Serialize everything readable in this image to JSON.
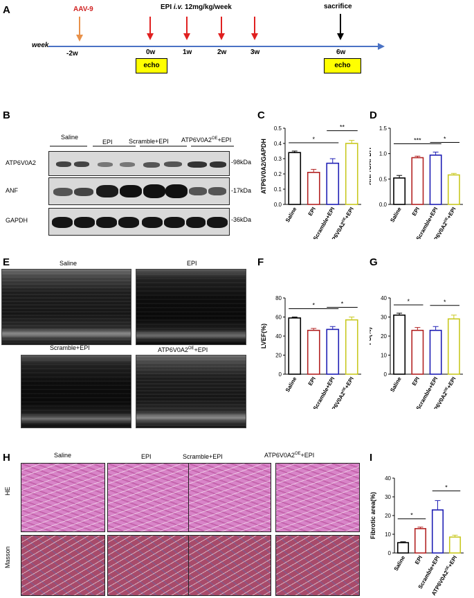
{
  "panels": {
    "A": "A",
    "B": "B",
    "C": "C",
    "D": "D",
    "E": "E",
    "F": "F",
    "G": "G",
    "H": "H",
    "I": "I"
  },
  "timeline": {
    "aav": "AAV-9",
    "epi_prefix": "EPI ",
    "epi_iv": "i.v.",
    "epi_suffix": " 12mg/kg/week",
    "sacrifice": "sacrifice",
    "week": "week",
    "ticks": [
      "-2w",
      "0w",
      "1w",
      "2w",
      "3w",
      "6w"
    ],
    "echo1": "echo",
    "echo2": "echo",
    "colors": {
      "axis": "#4a72c4",
      "aav_arrow": "#e8914a",
      "epi_arrow": "#e02020",
      "sac_arrow": "#000000",
      "aav_text": "#d02020",
      "echo_fill": "#ffff00"
    }
  },
  "blot": {
    "groups": [
      "Saline",
      "EPI",
      "Scramble+EPI"
    ],
    "group4_base": "ATP6V0A2",
    "group4_sup": "OE",
    "group4_tail": "+EPI",
    "rows": [
      {
        "label": "ATP6V0A2",
        "mw": "-98kDa"
      },
      {
        "label": "ANF",
        "mw": "-17kDa"
      },
      {
        "label": "GAPDH",
        "mw": "-36kDa"
      }
    ]
  },
  "echo_panel": {
    "labels": [
      "Saline",
      "EPI",
      "Scramble+EPI"
    ],
    "label4_base": "ATP6V0A2",
    "label4_sup": "OE",
    "label4_tail": "+EPI"
  },
  "histology": {
    "labels": [
      "Saline",
      "EPI",
      "Scramble+EPI"
    ],
    "label4_base": "ATP6V0A2",
    "label4_sup": "OE",
    "label4_tail": "+EPI",
    "rows": [
      "HE",
      "Masson"
    ]
  },
  "chart_data": [
    {
      "panel": "C",
      "type": "bar",
      "categories": [
        "Saline",
        "EPI",
        "Scramble+EPI",
        "ATP6V0A2OE+EPI"
      ],
      "values": [
        0.34,
        0.21,
        0.27,
        0.4
      ],
      "errors": [
        0.01,
        0.02,
        0.03,
        0.02
      ],
      "ylabel": "ATP6V0A2/GAPDH",
      "ylim": [
        0,
        0.5
      ],
      "ticks": [
        0.0,
        0.1,
        0.2,
        0.3,
        0.4,
        0.5
      ],
      "tick_labels": [
        "0.0",
        "0.1",
        "0.2",
        "0.3",
        "0.4",
        "0.5"
      ],
      "significance": [
        {
          "from": 0,
          "to": 2,
          "label": "*"
        },
        {
          "from": 2,
          "to": 3,
          "label": "**"
        }
      ]
    },
    {
      "panel": "D",
      "type": "bar",
      "categories": [
        "Saline",
        "EPI",
        "Scramble+EPI",
        "ATP6V0A2OE+EPI"
      ],
      "values": [
        0.52,
        0.92,
        0.97,
        0.58
      ],
      "errors": [
        0.05,
        0.03,
        0.06,
        0.03
      ],
      "ylabel": "ANP/GAPDH",
      "ylim": [
        0,
        1.5
      ],
      "ticks": [
        0.0,
        0.5,
        1.0,
        1.5
      ],
      "tick_labels": [
        "0.0",
        "0.5",
        "1.0",
        "1.5"
      ],
      "significance": [
        {
          "from": 0,
          "to": 2,
          "label": "***"
        },
        {
          "from": 2,
          "to": 3,
          "label": "*"
        }
      ]
    },
    {
      "panel": "F",
      "type": "bar",
      "categories": [
        "Saline",
        "EPI",
        "Scramble+EPI",
        "ATP6V0A2OE+EPI"
      ],
      "values": [
        59,
        46,
        47,
        57
      ],
      "errors": [
        1,
        2,
        3,
        3
      ],
      "ylabel": "LVEF(%)",
      "ylim": [
        0,
        80
      ],
      "ticks": [
        0,
        20,
        40,
        60,
        80
      ],
      "tick_labels": [
        "0",
        "20",
        "40",
        "60",
        "80"
      ],
      "significance": [
        {
          "from": 0,
          "to": 2,
          "label": "*"
        },
        {
          "from": 2,
          "to": 3,
          "label": "*"
        }
      ]
    },
    {
      "panel": "G",
      "type": "bar",
      "categories": [
        "Saline",
        "EPI",
        "Scramble+EPI",
        "ATP6V0A2OE+EPI"
      ],
      "values": [
        31,
        23,
        23,
        29
      ],
      "errors": [
        1,
        1.5,
        2,
        2
      ],
      "ylabel": "FS(%)",
      "ylim": [
        0,
        40
      ],
      "ticks": [
        0,
        10,
        20,
        30,
        40
      ],
      "tick_labels": [
        "0",
        "10",
        "20",
        "30",
        "40"
      ],
      "significance": [
        {
          "from": 0,
          "to": 1,
          "label": "*"
        },
        {
          "from": 2,
          "to": 3,
          "label": "*"
        }
      ]
    },
    {
      "panel": "I",
      "type": "bar",
      "categories": [
        "Saline",
        "EPI",
        "Scramble+EPI",
        "ATP6V0A2OE+EPI"
      ],
      "values": [
        5.5,
        13,
        23,
        8.5
      ],
      "errors": [
        0.5,
        0.8,
        5,
        1
      ],
      "ylabel": "Fibrotic area(%)",
      "ylim": [
        0,
        40
      ],
      "ticks": [
        0,
        10,
        20,
        30,
        40
      ],
      "tick_labels": [
        "0",
        "10",
        "20",
        "30",
        "40"
      ],
      "significance": [
        {
          "from": 0,
          "to": 1,
          "label": "*"
        },
        {
          "from": 2,
          "to": 3,
          "label": "*"
        }
      ]
    }
  ],
  "bar_colors": [
    "#000000",
    "#b22222",
    "#1f1fb4",
    "#c8c820"
  ],
  "xlabel_oe_base": "ATP6V0A2",
  "xlabel_oe_sup": "OE",
  "xlabel_oe_tail": "+EPI"
}
